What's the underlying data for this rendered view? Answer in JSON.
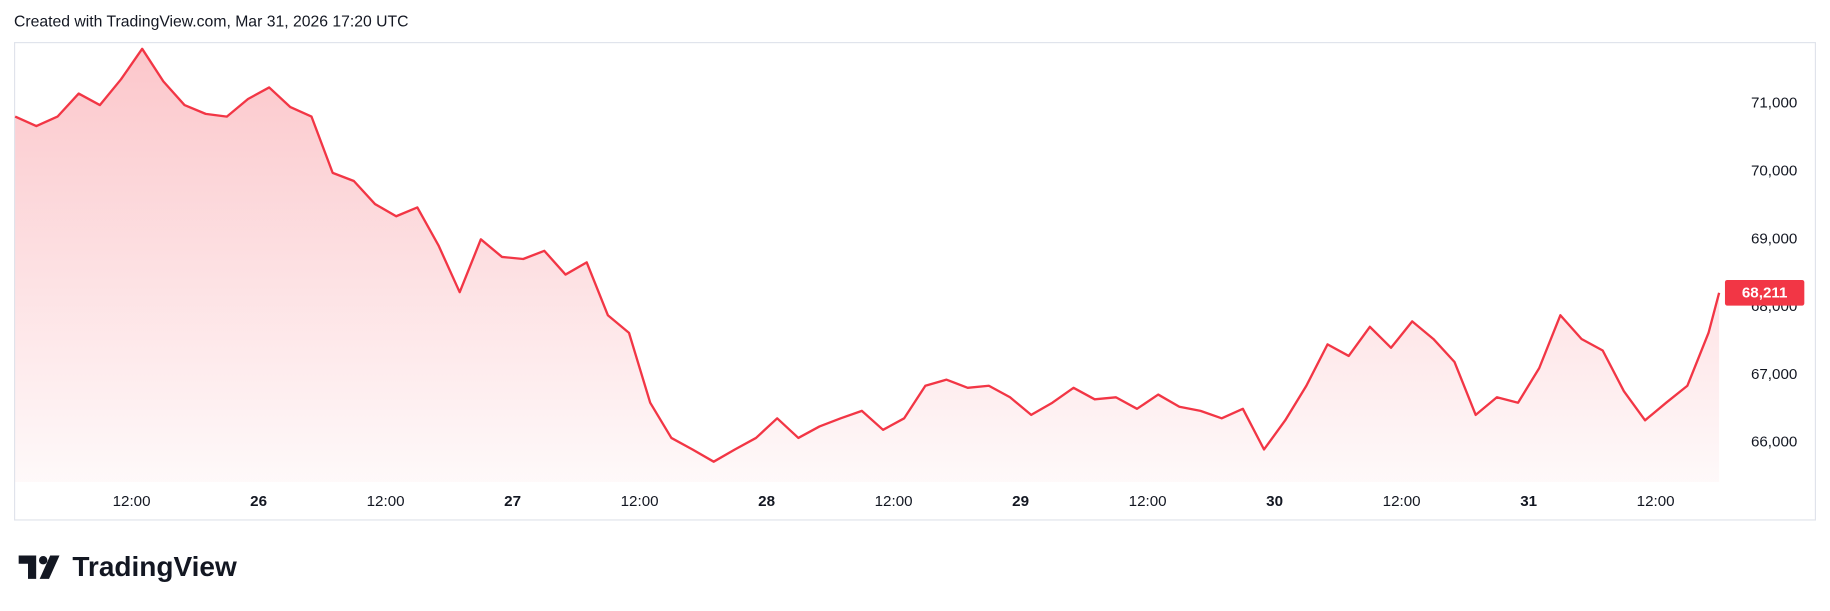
{
  "header": {
    "text": "Created with TradingView.com, Mar 31, 2026 17:20 UTC"
  },
  "footer": {
    "logo_text": "TradingView"
  },
  "chart_data": {
    "type": "area",
    "color": "#f23645",
    "x": [
      1,
      3,
      5,
      7,
      9,
      11,
      13,
      15,
      17,
      19,
      21,
      23,
      25,
      27,
      29,
      31,
      33,
      35,
      37,
      39,
      41,
      43,
      45,
      47,
      49,
      51,
      53,
      55,
      57,
      59,
      61,
      63,
      65,
      67,
      69,
      71,
      73,
      75,
      77,
      79,
      81,
      83,
      85,
      87,
      89,
      91,
      93,
      95,
      97,
      99,
      101,
      103,
      105,
      107,
      109,
      111,
      113,
      115,
      117,
      119,
      121,
      123,
      125,
      127,
      129,
      131,
      133,
      135,
      137,
      139,
      141,
      143,
      145,
      147,
      149,
      151,
      153,
      155,
      157,
      159,
      161,
      162
    ],
    "values": [
      70810,
      70670,
      70810,
      71150,
      70980,
      71360,
      71810,
      71330,
      70980,
      70850,
      70810,
      71070,
      71240,
      70950,
      70810,
      69980,
      69860,
      69520,
      69340,
      69470,
      68910,
      68220,
      69000,
      68740,
      68710,
      68830,
      68480,
      68660,
      67880,
      67620,
      66590,
      66070,
      65900,
      65720,
      65900,
      66070,
      66360,
      66070,
      66240,
      66360,
      66470,
      66190,
      66360,
      66840,
      66930,
      66810,
      66840,
      66670,
      66410,
      66590,
      66810,
      66640,
      66670,
      66500,
      66710,
      66530,
      66470,
      66360,
      66500,
      65900,
      66330,
      66840,
      67450,
      67280,
      67710,
      67400,
      67790,
      67530,
      67190,
      66410,
      66670,
      66590,
      67100,
      67880,
      67530,
      67360,
      66760,
      66330,
      66590,
      66840,
      67620,
      68211
    ],
    "value_labels": [
      null,
      null,
      null,
      null,
      null,
      null,
      null,
      null,
      null,
      null,
      null,
      null,
      null,
      null,
      null,
      null,
      null,
      null,
      null,
      null,
      null,
      null,
      null,
      null,
      null,
      null,
      null,
      null,
      null,
      null,
      null,
      null,
      null,
      null,
      null,
      null,
      null,
      null,
      null,
      null,
      null,
      null,
      null,
      null,
      null,
      null,
      null,
      null,
      null,
      null,
      null,
      null,
      null,
      null,
      null,
      null,
      null,
      null,
      null,
      null,
      null,
      null,
      null,
      null,
      null,
      null,
      null,
      null,
      null,
      null,
      null,
      null,
      null,
      null,
      null,
      null,
      null,
      null,
      null,
      null,
      null,
      "68,211"
    ],
    "xlim": [
      1,
      162
    ],
    "xticks": [
      {
        "value": 12,
        "label": "12:00"
      },
      {
        "value": 24,
        "label": "26"
      },
      {
        "value": 36,
        "label": "12:00"
      },
      {
        "value": 48,
        "label": "27"
      },
      {
        "value": 60,
        "label": "12:00"
      },
      {
        "value": 72,
        "label": "28"
      },
      {
        "value": 84,
        "label": "12:00"
      },
      {
        "value": 96,
        "label": "29"
      },
      {
        "value": 108,
        "label": "12:00"
      },
      {
        "value": 120,
        "label": "30"
      },
      {
        "value": 132,
        "label": "12:00"
      },
      {
        "value": 144,
        "label": "31"
      },
      {
        "value": 156,
        "label": "12:00"
      }
    ],
    "ylim": [
      65420,
      71910
    ],
    "yticks": [
      {
        "value": 66000,
        "label": "66,000"
      },
      {
        "value": 67000,
        "label": "67,000"
      },
      {
        "value": 68000,
        "label": "68,000"
      },
      {
        "value": 69000,
        "label": "69,000"
      },
      {
        "value": 70000,
        "label": "70,000"
      },
      {
        "value": 71000,
        "label": "71,000"
      }
    ],
    "grid": false
  }
}
